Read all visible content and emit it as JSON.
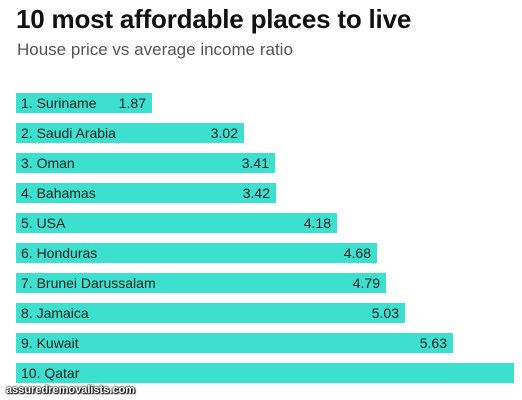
{
  "title": "10 most affordable places to live",
  "subtitle": "House price vs average income ratio",
  "watermark": "assuredremovalists.com",
  "colors": {
    "bar": "#3de0cf",
    "text": "#222222"
  },
  "chart_data": {
    "type": "bar",
    "orientation": "horizontal",
    "title": "10 most affordable places to live",
    "subtitle": "House price vs average income ratio",
    "categories": [
      "1. Suriname",
      "2. Saudi Arabia",
      "3. Oman",
      "4. Bahamas",
      "5. USA",
      "6. Honduras",
      "7. Brunei Darussalam",
      "8. Jamaica",
      "9. Kuwait",
      "10. Qatar"
    ],
    "values": [
      1.87,
      3.02,
      3.41,
      3.42,
      4.18,
      4.68,
      4.79,
      5.03,
      5.63,
      6.4
    ],
    "value_labels": [
      "1.87",
      "3.02",
      "3.41",
      "3.42",
      "4.18",
      "4.68",
      "4.79",
      "5.03",
      "5.63",
      ""
    ],
    "grid": false,
    "legend": "none"
  }
}
